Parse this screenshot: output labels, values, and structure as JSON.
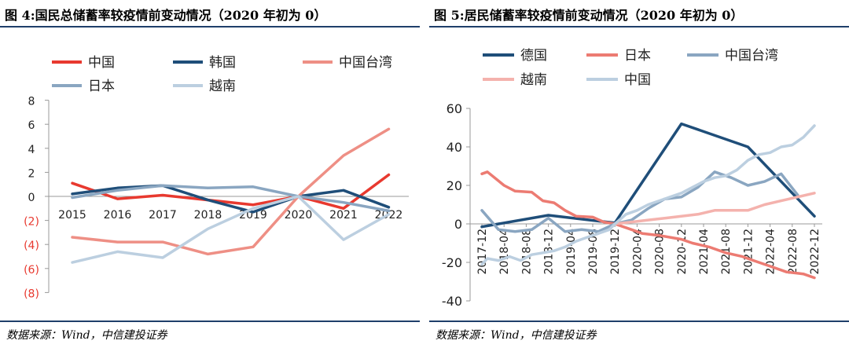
{
  "left": {
    "title": "图 4:国民总储蓄率较疫情前变动情况（2020 年初为 0）",
    "source": "数据来源：Wind，中信建投证券"
  },
  "right": {
    "title": "图 5:居民储蓄率较疫情前变动情况（2020 年初为 0）",
    "source": "数据来源：Wind，中信建投证券"
  },
  "chart_data": [
    {
      "type": "line",
      "title": "图 4:国民总储蓄率较疫情前变动情况（2020 年初为 0）",
      "categories": [
        "2015",
        "2016",
        "2017",
        "2018",
        "2019",
        "2020",
        "2021",
        "2022"
      ],
      "ylim": [
        -8,
        8
      ],
      "yticks": [
        8,
        6,
        4,
        2,
        0,
        -2,
        -4,
        -6,
        -8
      ],
      "ytick_labels": [
        "8",
        "6",
        "4",
        "2",
        "0",
        "(2)",
        "(4)",
        "(6)",
        "(8)"
      ],
      "legend_position": "top",
      "series": [
        {
          "name": "中国",
          "color": "#e8392f",
          "values": [
            1.1,
            -0.2,
            0.1,
            -0.3,
            -0.7,
            0.0,
            -1.0,
            1.8
          ]
        },
        {
          "name": "韩国",
          "color": "#1f4e79",
          "values": [
            0.2,
            0.7,
            0.9,
            -0.3,
            -1.3,
            0.0,
            0.5,
            -0.9
          ]
        },
        {
          "name": "中国台湾",
          "color": "#ee8f85",
          "values": [
            -3.4,
            -3.8,
            -3.8,
            -4.8,
            -4.2,
            0.0,
            3.4,
            5.6
          ]
        },
        {
          "name": "日本",
          "color": "#8aa6c1",
          "values": [
            -0.1,
            0.5,
            0.9,
            0.7,
            0.8,
            0.0,
            -0.5,
            -1.2
          ]
        },
        {
          "name": "越南",
          "color": "#bccfe0",
          "values": [
            -5.5,
            -4.6,
            -5.1,
            -2.7,
            -1.0,
            0.0,
            -3.6,
            -1.5
          ]
        }
      ]
    },
    {
      "type": "line",
      "title": "图 5:居民储蓄率较疫情前变动情况（2020 年初为 0）",
      "xticks": [
        "2017-12",
        "2018-04",
        "2018-08",
        "2018-12",
        "2019-04",
        "2019-08",
        "2019-12",
        "2020-04",
        "2020-08",
        "2020-12",
        "2021-04",
        "2021-08",
        "2021-12",
        "2022-04",
        "2022-08",
        "2022-12"
      ],
      "ylim": [
        -40,
        60
      ],
      "yticks": [
        60,
        40,
        20,
        0,
        -20,
        -40
      ],
      "legend_position": "top",
      "series": [
        {
          "name": "德国",
          "color": "#1f4e79",
          "points": [
            [
              "2017-12",
              -1.5
            ],
            [
              "2018-12",
              4.5
            ],
            [
              "2019-12",
              0.5
            ],
            [
              "2020-12",
              52
            ],
            [
              "2021-12",
              40
            ],
            [
              "2022-12",
              4
            ]
          ]
        },
        {
          "name": "日本",
          "color": "#ec7b72",
          "points": [
            [
              "2017-12",
              26
            ],
            [
              "2018-01",
              27
            ],
            [
              "2018-04",
              20
            ],
            [
              "2018-06",
              17
            ],
            [
              "2018-09",
              16.5
            ],
            [
              "2018-11",
              12
            ],
            [
              "2019-01",
              11
            ],
            [
              "2019-03",
              7
            ],
            [
              "2019-05",
              4
            ],
            [
              "2019-08",
              3.5
            ],
            [
              "2019-10",
              1
            ],
            [
              "2019-12",
              0
            ],
            [
              "2020-03",
              -3
            ],
            [
              "2020-05",
              -5
            ],
            [
              "2020-08",
              -6
            ],
            [
              "2020-12",
              -8
            ],
            [
              "2021-02",
              -10
            ],
            [
              "2021-05",
              -12
            ],
            [
              "2021-08",
              -15
            ],
            [
              "2021-11",
              -17
            ],
            [
              "2022-01",
              -19
            ],
            [
              "2022-04",
              -22
            ],
            [
              "2022-07",
              -25
            ],
            [
              "2022-10",
              -26
            ],
            [
              "2022-12",
              -28
            ]
          ]
        },
        {
          "name": "中国台湾",
          "color": "#8aa6c1",
          "points": [
            [
              "2017-12",
              7
            ],
            [
              "2018-03",
              -3
            ],
            [
              "2018-06",
              -4
            ],
            [
              "2018-09",
              -3
            ],
            [
              "2018-12",
              3
            ],
            [
              "2019-03",
              -4
            ],
            [
              "2019-06",
              -3
            ],
            [
              "2019-09",
              -4
            ],
            [
              "2019-12",
              0
            ],
            [
              "2020-03",
              2
            ],
            [
              "2020-06",
              8
            ],
            [
              "2020-09",
              13
            ],
            [
              "2020-12",
              14
            ],
            [
              "2021-03",
              19
            ],
            [
              "2021-06",
              27
            ],
            [
              "2021-09",
              24
            ],
            [
              "2021-12",
              20
            ],
            [
              "2022-03",
              22
            ],
            [
              "2022-06",
              26
            ],
            [
              "2022-09",
              15
            ]
          ]
        },
        {
          "name": "越南",
          "color": "#f4b2ad",
          "points": [
            [
              "2019-12",
              0
            ],
            [
              "2020-03",
              1
            ],
            [
              "2020-06",
              2
            ],
            [
              "2020-09",
              3
            ],
            [
              "2020-12",
              4
            ],
            [
              "2021-03",
              5
            ],
            [
              "2021-06",
              7
            ],
            [
              "2021-09",
              7
            ],
            [
              "2021-12",
              7
            ],
            [
              "2022-03",
              10
            ],
            [
              "2022-06",
              12
            ],
            [
              "2022-09",
              14
            ],
            [
              "2022-12",
              16
            ]
          ]
        },
        {
          "name": "中国",
          "color": "#bccfe0",
          "points": [
            [
              "2017-12",
              -21
            ],
            [
              "2018-01",
              -18
            ],
            [
              "2018-03",
              -19
            ],
            [
              "2018-05",
              -17
            ],
            [
              "2018-07",
              -19
            ],
            [
              "2018-09",
              -16
            ],
            [
              "2018-11",
              -15
            ],
            [
              "2019-01",
              -14
            ],
            [
              "2019-03",
              -12
            ],
            [
              "2019-05",
              -9
            ],
            [
              "2019-07",
              -7
            ],
            [
              "2019-09",
              -5
            ],
            [
              "2019-11",
              -3
            ],
            [
              "2019-12",
              0
            ],
            [
              "2020-02",
              5
            ],
            [
              "2020-04",
              7
            ],
            [
              "2020-06",
              10
            ],
            [
              "2020-08",
              12
            ],
            [
              "2020-10",
              14
            ],
            [
              "2020-12",
              16
            ],
            [
              "2021-02",
              19
            ],
            [
              "2021-04",
              22
            ],
            [
              "2021-06",
              24
            ],
            [
              "2021-08",
              25
            ],
            [
              "2021-10",
              28
            ],
            [
              "2021-12",
              33
            ],
            [
              "2022-02",
              36
            ],
            [
              "2022-04",
              37
            ],
            [
              "2022-06",
              40
            ],
            [
              "2022-08",
              41
            ],
            [
              "2022-10",
              45
            ],
            [
              "2022-12",
              51
            ]
          ]
        }
      ]
    }
  ]
}
